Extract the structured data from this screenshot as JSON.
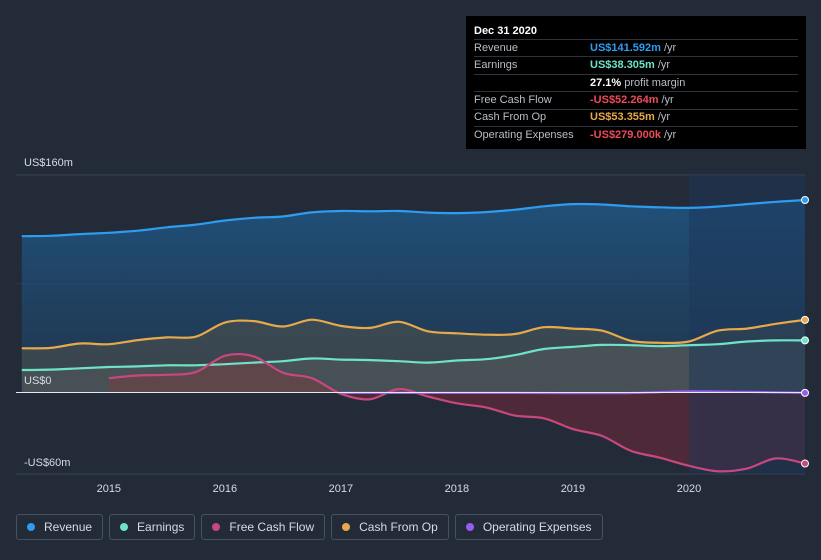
{
  "tooltip": {
    "date": "Dec 31 2020",
    "rows": [
      {
        "label": "Revenue",
        "value": "US$141.592m",
        "unit": "/yr",
        "color": "#2e9cf0"
      },
      {
        "label": "Earnings",
        "value": "US$38.305m",
        "unit": "/yr",
        "color": "#6fe3c8"
      },
      {
        "label": "",
        "value": "27.1%",
        "unit": "profit margin",
        "color": "#ffffff"
      },
      {
        "label": "Free Cash Flow",
        "value": "-US$52.264m",
        "unit": "/yr",
        "color": "#ef4a5a"
      },
      {
        "label": "Cash From Op",
        "value": "US$53.355m",
        "unit": "/yr",
        "color": "#e8a94a"
      },
      {
        "label": "Operating Expenses",
        "value": "-US$279.000k",
        "unit": "/yr",
        "color": "#ef4a5a"
      }
    ]
  },
  "legend": [
    {
      "label": "Revenue",
      "color": "#2e9cf0"
    },
    {
      "label": "Earnings",
      "color": "#6fe3c8"
    },
    {
      "label": "Free Cash Flow",
      "color": "#c8487e"
    },
    {
      "label": "Cash From Op",
      "color": "#e8a94a"
    },
    {
      "label": "Operating Expenses",
      "color": "#9a5cf0"
    }
  ],
  "chart_data": {
    "type": "area",
    "title": "",
    "xlabel": "",
    "ylabel": "",
    "y_tick_labels": [
      "US$160m",
      "US$0",
      "-US$60m"
    ],
    "ylim": [
      -60,
      160
    ],
    "xlim": [
      2014.2,
      2021.0
    ],
    "x_ticks": [
      2015,
      2016,
      2017,
      2018,
      2019,
      2020
    ],
    "x_tick_labels": [
      "2015",
      "2016",
      "2017",
      "2018",
      "2019",
      "2020"
    ],
    "highlight_from": 2020.0,
    "series": [
      {
        "name": "Revenue",
        "color": "#2e9cf0",
        "fill": true,
        "x": [
          2014.25,
          2014.5,
          2014.75,
          2015.0,
          2015.25,
          2015.5,
          2015.75,
          2016.0,
          2016.25,
          2016.5,
          2016.75,
          2017.0,
          2017.25,
          2017.5,
          2017.75,
          2018.0,
          2018.25,
          2018.5,
          2018.75,
          2019.0,
          2019.25,
          2019.5,
          2019.75,
          2020.0,
          2020.25,
          2020.5,
          2020.75,
          2021.0
        ],
        "values": [
          115,
          115.3,
          116.5,
          117.5,
          119,
          121.5,
          123.5,
          126.5,
          128.5,
          129.5,
          132.5,
          133.5,
          133.3,
          133.5,
          132.3,
          132,
          132.7,
          134.5,
          137,
          138.6,
          138.3,
          137,
          136.2,
          135.8,
          136.8,
          138.6,
          140.3,
          141.6
        ]
      },
      {
        "name": "Earnings",
        "color": "#6fe3c8",
        "fill": true,
        "x": [
          2014.25,
          2014.5,
          2014.75,
          2015.0,
          2015.25,
          2015.5,
          2015.75,
          2016.0,
          2016.25,
          2016.5,
          2016.75,
          2017.0,
          2017.25,
          2017.5,
          2017.75,
          2018.0,
          2018.25,
          2018.5,
          2018.75,
          2019.0,
          2019.25,
          2019.5,
          2019.75,
          2020.0,
          2020.25,
          2020.5,
          2020.75,
          2021.0
        ],
        "values": [
          16.5,
          16.8,
          17.8,
          18.7,
          19.2,
          20,
          20,
          20.8,
          22,
          23,
          25,
          24.2,
          23.8,
          23,
          22,
          23.5,
          24.5,
          27.5,
          32,
          33.5,
          35,
          34.8,
          34,
          34.8,
          35.5,
          37.5,
          38.3,
          38.3
        ]
      },
      {
        "name": "Free Cash Flow",
        "color": "#c8487e",
        "fill": true,
        "x": [
          2015.0,
          2015.25,
          2015.5,
          2015.75,
          2016.0,
          2016.25,
          2016.5,
          2016.75,
          2017.0,
          2017.25,
          2017.5,
          2017.75,
          2018.0,
          2018.25,
          2018.5,
          2018.75,
          2019.0,
          2019.25,
          2019.5,
          2019.75,
          2020.0,
          2020.25,
          2020.5,
          2020.75,
          2021.0
        ],
        "values": [
          10.5,
          12.5,
          13,
          15,
          27,
          26.5,
          14.5,
          10.5,
          -1,
          -5,
          2.5,
          -3,
          -8,
          -11,
          -17,
          -19,
          -27,
          -32,
          -43,
          -48,
          -54,
          -58,
          -56,
          -48.5,
          -52.3
        ]
      },
      {
        "name": "Cash From Op",
        "color": "#e8a94a",
        "fill": true,
        "x": [
          2014.25,
          2014.5,
          2014.75,
          2015.0,
          2015.25,
          2015.5,
          2015.75,
          2016.0,
          2016.25,
          2016.5,
          2016.75,
          2017.0,
          2017.25,
          2017.5,
          2017.75,
          2018.0,
          2018.25,
          2018.5,
          2018.75,
          2019.0,
          2019.25,
          2019.5,
          2019.75,
          2020.0,
          2020.25,
          2020.5,
          2020.75,
          2021.0
        ],
        "values": [
          32.5,
          32.8,
          36,
          35.5,
          38.5,
          40.5,
          41,
          51.5,
          52.5,
          48.5,
          53.5,
          49,
          47.5,
          52,
          45,
          43.5,
          42.5,
          43,
          48,
          47,
          45.5,
          38,
          36.5,
          37.5,
          45.5,
          47,
          50.5,
          53.4
        ]
      },
      {
        "name": "Operating Expenses",
        "color": "#9a5cf0",
        "fill": false,
        "x": [
          2017.0,
          2017.5,
          2018.0,
          2018.5,
          2019.0,
          2019.5,
          2020.0,
          2020.5,
          2021.0
        ],
        "values": [
          -0.3,
          -0.3,
          -0.3,
          -0.3,
          -0.5,
          -0.4,
          0.8,
          0.4,
          -0.3
        ]
      }
    ]
  }
}
